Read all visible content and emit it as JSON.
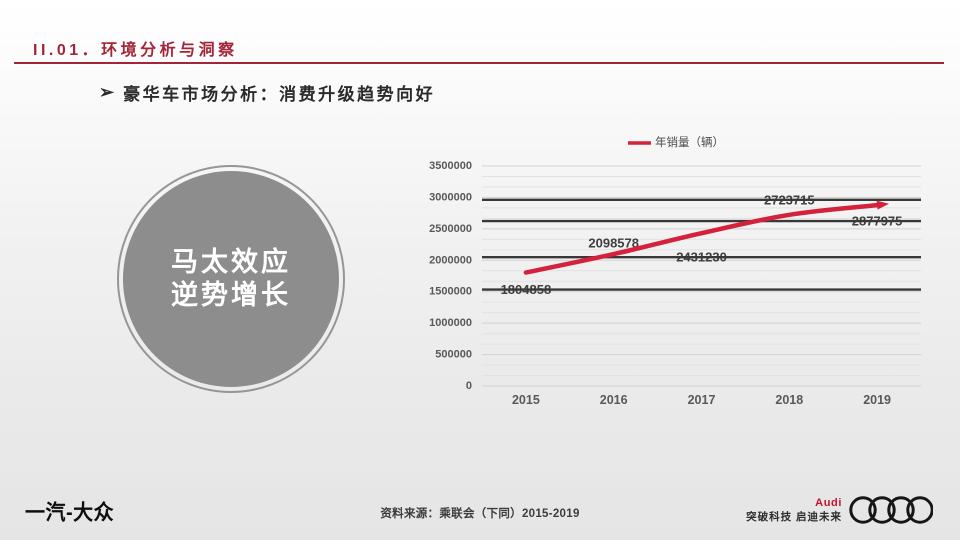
{
  "header": {
    "section_label": "II.01．环境分析与洞察",
    "bullet": "➢",
    "subtitle": "豪华车市场分析：消费升级趋势向好"
  },
  "badge": {
    "line1": "马太效应",
    "line2": "逆势增长"
  },
  "chart_data": {
    "type": "line",
    "title": "",
    "xlabel": "",
    "ylabel": "",
    "legend": [
      "年销量（辆）"
    ],
    "legend_position": "top",
    "categories": [
      "2015",
      "2016",
      "2017",
      "2018",
      "2019"
    ],
    "series": [
      {
        "name": "年销量（辆）",
        "color": "#d4213c",
        "values": [
          1804858,
          2098578,
          2431230,
          2723715,
          2877975
        ]
      }
    ],
    "ylim": [
      0,
      3500000
    ],
    "ytick_step": 500000,
    "grid": true,
    "data_labels": [
      "1804858",
      "2098578",
      "2431230",
      "2723715",
      "2877975"
    ],
    "strike_lines_through_label_indices": [
      0,
      2,
      3,
      4
    ],
    "strike_line_color": "#383838"
  },
  "footer": {
    "left_logo": "一汽-大众",
    "source": "资料来源：乘联会（下同）2015-2019",
    "audi_wordmark": "Audi",
    "audi_slogan": "突破科技 启迪未来"
  },
  "colors": {
    "accent_red": "#a32638",
    "chart_red": "#d4213c",
    "circle_gray": "#8d8d8d",
    "rings_black": "#161616"
  }
}
